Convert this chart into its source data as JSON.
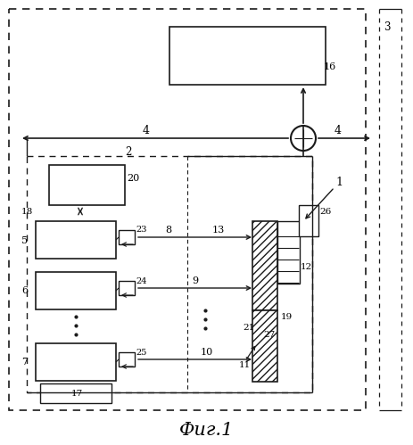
{
  "fig_width": 4.64,
  "fig_height": 4.99,
  "dpi": 100,
  "bg_color": "#ffffff",
  "lc": "#1a1a1a",
  "title": "Фиг.1",
  "title_fontsize": 15,
  "lw": 1.0
}
